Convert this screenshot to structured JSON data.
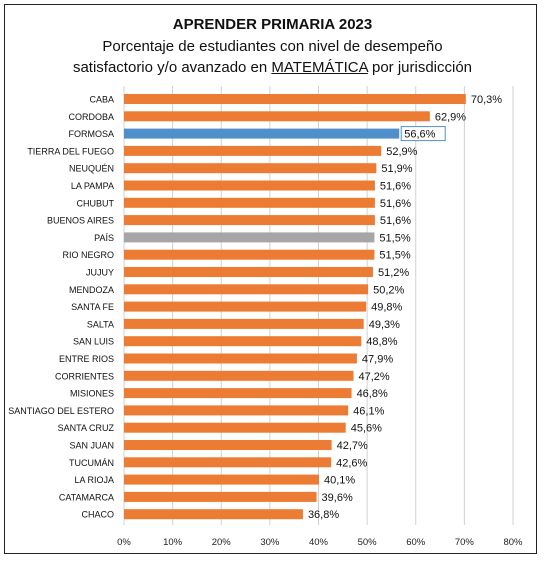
{
  "titles": {
    "line1": "APRENDER PRIMARIA 2023",
    "line2": "Porcentaje de estudiantes con nivel de desempeño",
    "line3_before": "satisfactorio y/o avanzado en ",
    "line3_subject": "MATEMÁTICA",
    "line3_after": " por jurisdicción"
  },
  "colors": {
    "default_bar": "#ec7b34",
    "highlight_bar": "#4f8fcb",
    "country_bar": "#a6a6a6",
    "grid": "#d0d0d0"
  },
  "chart_data": {
    "type": "bar",
    "orientation": "horizontal",
    "categories": [
      "CABA",
      "CORDOBA",
      "FORMOSA",
      "TIERRA DEL FUEGO",
      "NEUQUÉN",
      "LA PAMPA",
      "CHUBUT",
      "BUENOS AIRES",
      "PAÍS",
      "RIO NEGRO",
      "JUJUY",
      "MENDOZA",
      "SANTA FE",
      "SALTA",
      "SAN LUIS",
      "ENTRE RIOS",
      "CORRIENTES",
      "MISIONES",
      "SANTIAGO DEL ESTERO",
      "SANTA CRUZ",
      "SAN JUAN",
      "TUCUMÁN",
      "LA RIOJA",
      "CATAMARCA",
      "CHACO"
    ],
    "values": [
      70.3,
      62.9,
      56.6,
      52.9,
      51.9,
      51.6,
      51.6,
      51.6,
      51.5,
      51.5,
      51.2,
      50.2,
      49.8,
      49.3,
      48.8,
      47.9,
      47.2,
      46.8,
      46.1,
      45.6,
      42.7,
      42.6,
      40.1,
      39.6,
      36.8
    ],
    "value_labels": [
      "70,3%",
      "62,9%",
      "56,6%",
      "52,9%",
      "51,9%",
      "51,6%",
      "51,6%",
      "51,6%",
      "51,5%",
      "51,5%",
      "51,2%",
      "50,2%",
      "49,8%",
      "49,3%",
      "48,8%",
      "47,9%",
      "47,2%",
      "46,8%",
      "46,1%",
      "45,6%",
      "42,7%",
      "42,6%",
      "40,1%",
      "39,6%",
      "36,8%"
    ],
    "highlight": {
      "FORMOSA": "highlight",
      "PAÍS": "country"
    },
    "xlim": [
      0,
      80
    ],
    "xticks": [
      "0%",
      "10%",
      "20%",
      "30%",
      "40%",
      "50%",
      "60%",
      "70%",
      "80%"
    ],
    "grid": true,
    "legend": "none"
  }
}
